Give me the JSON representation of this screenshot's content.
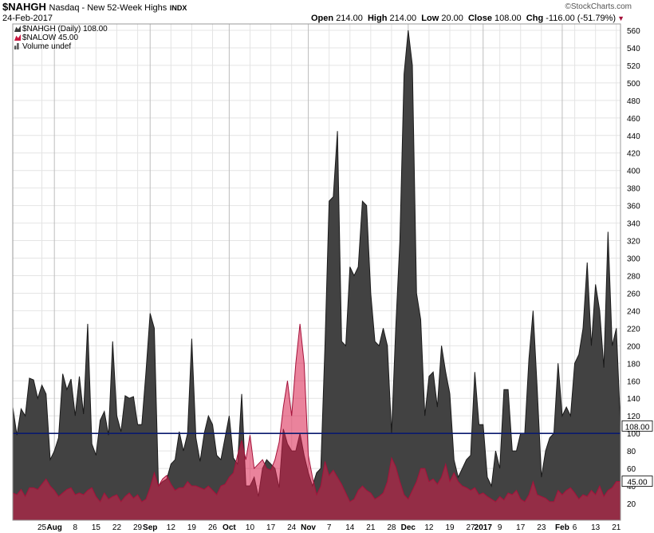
{
  "header": {
    "symbol": "$NAHGH",
    "name": "Nasdaq - New 52-Week Highs",
    "exchange": "INDX",
    "date": "24-Feb-2017",
    "watermark": "©StockCharts.com",
    "open_label": "Open",
    "open": "214.00",
    "high_label": "High",
    "high": "214.00",
    "low_label": "Low",
    "low": "20.00",
    "close_label": "Close",
    "close": "108.00",
    "chg_label": "Chg",
    "chg": "-116.00 (-51.79%)",
    "chg_arrow": "▼"
  },
  "legend": [
    {
      "text": "$NAHGH (Daily) 108.00",
      "color": "#3a3a3a"
    },
    {
      "text": "$NALOW 45.00",
      "color": "#c8173f"
    },
    {
      "text": "Volume undef",
      "color": "#555555"
    }
  ],
  "chart_data": {
    "type": "area",
    "ylim": [
      0,
      570
    ],
    "yticks": [
      20,
      40,
      60,
      80,
      100,
      120,
      140,
      160,
      180,
      200,
      220,
      240,
      260,
      280,
      300,
      320,
      340,
      360,
      380,
      400,
      420,
      440,
      460,
      480,
      500,
      520,
      540,
      560
    ],
    "xtick_labels": [
      "25",
      "Aug",
      "8",
      "15",
      "22",
      "29",
      "Sep",
      "12",
      "19",
      "26",
      "Oct",
      "10",
      "17",
      "24",
      "Nov",
      "7",
      "14",
      "21",
      "28",
      "Dec",
      "12",
      "19",
      "27",
      "2017",
      "9",
      "17",
      "23",
      "Feb",
      "6",
      "13",
      "21"
    ],
    "xtick_pos": [
      7,
      10,
      15,
      20,
      25,
      30,
      33,
      38,
      43,
      48,
      52,
      57,
      62,
      67,
      71,
      76,
      81,
      86,
      91,
      95,
      100,
      105,
      110,
      113,
      117,
      122,
      127,
      132,
      135,
      140,
      145
    ],
    "bold_ticks": [
      "Aug",
      "Sep",
      "Oct",
      "Nov",
      "Dec",
      "2017",
      "Feb"
    ],
    "reference_line": 100,
    "price_labels": [
      {
        "value": 108,
        "text": "108.00"
      },
      {
        "value": 45,
        "text": "45.00"
      }
    ],
    "series": [
      {
        "name": "$NAHGH",
        "color": "#3a3a3a",
        "values": [
          130,
          98,
          128,
          120,
          163,
          161,
          140,
          155,
          145,
          70,
          80,
          95,
          168,
          150,
          162,
          120,
          165,
          122,
          225,
          88,
          75,
          115,
          125,
          98,
          205,
          120,
          102,
          143,
          140,
          142,
          110,
          110,
          170,
          237,
          220,
          40,
          45,
          48,
          65,
          70,
          102,
          80,
          100,
          208,
          95,
          68,
          100,
          120,
          110,
          75,
          70,
          95,
          120,
          72,
          65,
          145,
          40,
          40,
          50,
          28,
          60,
          70,
          65,
          60,
          38,
          105,
          88,
          80,
          80,
          100,
          75,
          55,
          40,
          55,
          60,
          200,
          365,
          370,
          445,
          205,
          200,
          290,
          280,
          290,
          365,
          360,
          260,
          205,
          200,
          220,
          200,
          100,
          220,
          320,
          510,
          560,
          520,
          260,
          230,
          120,
          165,
          170,
          130,
          200,
          170,
          145,
          70,
          50,
          60,
          70,
          75,
          170,
          110,
          110,
          50,
          40,
          80,
          60,
          150,
          150,
          80,
          80,
          100,
          100,
          185,
          240,
          150,
          50,
          80,
          95,
          100,
          180,
          120,
          130,
          120,
          180,
          190,
          220,
          295,
          200,
          270,
          240,
          175,
          330,
          200,
          220,
          108
        ]
      },
      {
        "name": "$NALOW",
        "color": "#c8173f",
        "values": [
          32,
          30,
          36,
          28,
          38,
          38,
          36,
          42,
          48,
          40,
          35,
          28,
          32,
          36,
          38,
          30,
          32,
          30,
          35,
          38,
          28,
          22,
          32,
          25,
          28,
          30,
          22,
          28,
          32,
          26,
          30,
          22,
          25,
          38,
          55,
          40,
          48,
          52,
          42,
          35,
          38,
          38,
          45,
          40,
          40,
          38,
          36,
          40,
          35,
          30,
          40,
          42,
          50,
          55,
          75,
          92,
          70,
          98,
          60,
          65,
          70,
          60,
          58,
          70,
          90,
          130,
          160,
          120,
          180,
          225,
          180,
          75,
          50,
          30,
          40,
          68,
          52,
          58,
          50,
          42,
          32,
          22,
          25,
          35,
          40,
          35,
          32,
          25,
          28,
          32,
          45,
          72,
          62,
          45,
          30,
          25,
          35,
          45,
          60,
          60,
          45,
          48,
          42,
          50,
          65,
          45,
          55,
          45,
          40,
          38,
          35,
          38,
          30,
          32,
          28,
          25,
          22,
          28,
          24,
          32,
          30,
          35,
          25,
          22,
          30,
          45,
          30,
          28,
          26,
          22,
          22,
          35,
          30,
          35,
          38,
          32,
          25,
          30,
          28,
          35,
          30,
          40,
          28,
          35,
          38,
          45,
          45
        ]
      }
    ]
  }
}
